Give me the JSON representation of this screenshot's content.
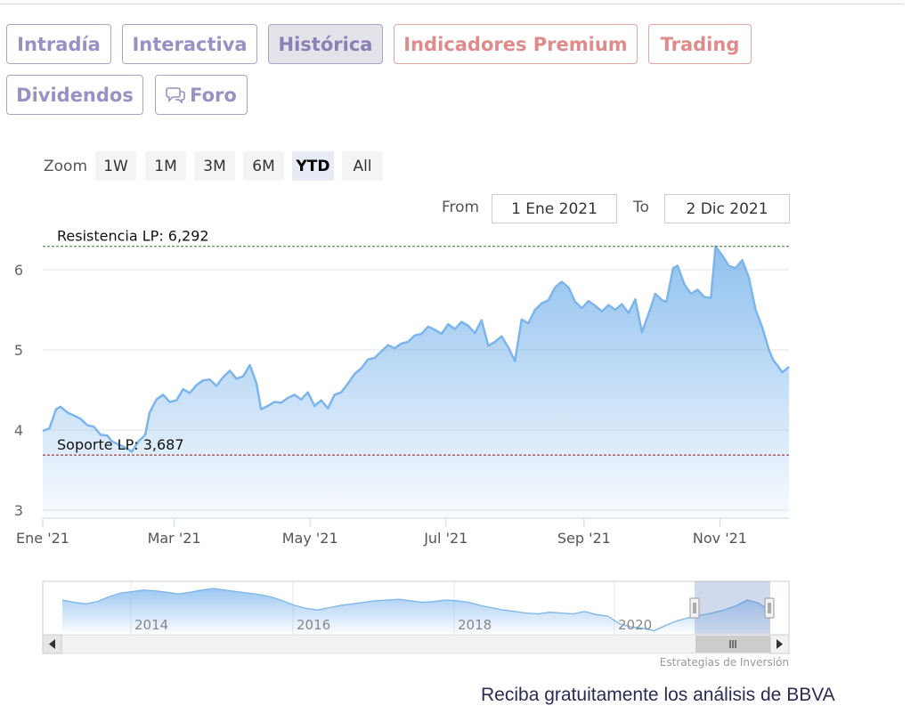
{
  "tabs": [
    {
      "label": "Intradía",
      "style": "normal"
    },
    {
      "label": "Interactiva",
      "style": "normal"
    },
    {
      "label": "Histórica",
      "style": "active"
    },
    {
      "label": "Indicadores Premium",
      "style": "premium"
    },
    {
      "label": "Trading",
      "style": "premium"
    },
    {
      "label": "Dividendos",
      "style": "normal"
    },
    {
      "label": "Foro",
      "style": "normal",
      "icon": "speech-bubbles-icon"
    }
  ],
  "zoom": {
    "label": "Zoom",
    "buttons": [
      "1W",
      "1M",
      "3M",
      "6M",
      "YTD",
      "All"
    ],
    "selected": "YTD"
  },
  "range": {
    "from_label": "From",
    "from_value": "1 Ene 2021",
    "to_label": "To",
    "to_value": "2 Dic 2021"
  },
  "credit": "Estrategias de Inversión",
  "cta": "Reciba gratuitamente los análisis de BBVA",
  "colors": {
    "line": "#7cb5ec",
    "area_top": "#90bfee",
    "resistance": "#2e7d32",
    "support": "#8b1a1a",
    "tab_text": "#9a90c4",
    "premium_text": "#e08b8b"
  },
  "chart_data": {
    "type": "area",
    "x_ticks": [
      "Ene '21",
      "Mar '21",
      "May '21",
      "Jul '21",
      "Sep '21",
      "Nov '21"
    ],
    "y_ticks": [
      3,
      4,
      5,
      6
    ],
    "ylim": [
      2.9,
      6.9
    ],
    "xlim": [
      "2021-01-01",
      "2021-12-02"
    ],
    "grid": true,
    "resistance": {
      "label": "Resistencia LP: 6,292",
      "value": 6.292
    },
    "support": {
      "label": "Soporte LP: 3,687",
      "value": 3.687
    },
    "series": [
      {
        "points": [
          [
            "2021-01-01",
            3.99
          ],
          [
            "2021-01-04",
            4.02
          ],
          [
            "2021-01-07",
            4.26
          ],
          [
            "2021-01-09",
            4.29
          ],
          [
            "2021-01-12",
            4.22
          ],
          [
            "2021-01-15",
            4.18
          ],
          [
            "2021-01-18",
            4.14
          ],
          [
            "2021-01-21",
            4.06
          ],
          [
            "2021-01-24",
            4.04
          ],
          [
            "2021-01-27",
            3.94
          ],
          [
            "2021-01-30",
            3.93
          ],
          [
            "2021-02-01",
            3.86
          ],
          [
            "2021-02-04",
            3.82
          ],
          [
            "2021-02-07",
            3.78
          ],
          [
            "2021-02-10",
            3.73
          ],
          [
            "2021-02-13",
            3.86
          ],
          [
            "2021-02-16",
            3.94
          ],
          [
            "2021-02-18",
            4.22
          ],
          [
            "2021-02-21",
            4.38
          ],
          [
            "2021-02-24",
            4.44
          ],
          [
            "2021-02-27",
            4.35
          ],
          [
            "2021-03-02",
            4.37
          ],
          [
            "2021-03-05",
            4.51
          ],
          [
            "2021-03-08",
            4.46
          ],
          [
            "2021-03-11",
            4.56
          ],
          [
            "2021-03-14",
            4.62
          ],
          [
            "2021-03-17",
            4.63
          ],
          [
            "2021-03-20",
            4.55
          ],
          [
            "2021-03-23",
            4.66
          ],
          [
            "2021-03-26",
            4.74
          ],
          [
            "2021-03-29",
            4.64
          ],
          [
            "2021-04-01",
            4.67
          ],
          [
            "2021-04-04",
            4.81
          ],
          [
            "2021-04-07",
            4.58
          ],
          [
            "2021-04-09",
            4.26
          ],
          [
            "2021-04-12",
            4.3
          ],
          [
            "2021-04-15",
            4.35
          ],
          [
            "2021-04-18",
            4.34
          ],
          [
            "2021-04-21",
            4.4
          ],
          [
            "2021-04-24",
            4.44
          ],
          [
            "2021-04-27",
            4.38
          ],
          [
            "2021-04-30",
            4.47
          ],
          [
            "2021-05-03",
            4.3
          ],
          [
            "2021-05-06",
            4.37
          ],
          [
            "2021-05-09",
            4.27
          ],
          [
            "2021-05-12",
            4.44
          ],
          [
            "2021-05-15",
            4.47
          ],
          [
            "2021-05-18",
            4.58
          ],
          [
            "2021-05-21",
            4.7
          ],
          [
            "2021-05-24",
            4.77
          ],
          [
            "2021-05-27",
            4.88
          ],
          [
            "2021-05-30",
            4.9
          ],
          [
            "2021-06-02",
            4.98
          ],
          [
            "2021-06-05",
            5.06
          ],
          [
            "2021-06-08",
            5.02
          ],
          [
            "2021-06-11",
            5.08
          ],
          [
            "2021-06-14",
            5.1
          ],
          [
            "2021-06-17",
            5.18
          ],
          [
            "2021-06-20",
            5.2
          ],
          [
            "2021-06-23",
            5.29
          ],
          [
            "2021-06-26",
            5.25
          ],
          [
            "2021-06-29",
            5.2
          ],
          [
            "2021-07-02",
            5.32
          ],
          [
            "2021-07-05",
            5.26
          ],
          [
            "2021-07-08",
            5.35
          ],
          [
            "2021-07-11",
            5.3
          ],
          [
            "2021-07-14",
            5.21
          ],
          [
            "2021-07-17",
            5.37
          ],
          [
            "2021-07-20",
            5.05
          ],
          [
            "2021-07-23",
            5.1
          ],
          [
            "2021-07-26",
            5.17
          ],
          [
            "2021-07-29",
            5.03
          ],
          [
            "2021-08-01",
            4.86
          ],
          [
            "2021-08-04",
            5.38
          ],
          [
            "2021-08-07",
            5.33
          ],
          [
            "2021-08-10",
            5.5
          ],
          [
            "2021-08-13",
            5.58
          ],
          [
            "2021-08-16",
            5.62
          ],
          [
            "2021-08-19",
            5.78
          ],
          [
            "2021-08-22",
            5.85
          ],
          [
            "2021-08-25",
            5.78
          ],
          [
            "2021-08-28",
            5.6
          ],
          [
            "2021-08-31",
            5.52
          ],
          [
            "2021-09-03",
            5.61
          ],
          [
            "2021-09-06",
            5.55
          ],
          [
            "2021-09-09",
            5.48
          ],
          [
            "2021-09-12",
            5.56
          ],
          [
            "2021-09-15",
            5.5
          ],
          [
            "2021-09-18",
            5.57
          ],
          [
            "2021-09-21",
            5.46
          ],
          [
            "2021-09-24",
            5.63
          ],
          [
            "2021-09-27",
            5.22
          ],
          [
            "2021-09-30",
            5.45
          ],
          [
            "2021-10-03",
            5.7
          ],
          [
            "2021-10-06",
            5.62
          ],
          [
            "2021-10-08",
            5.6
          ],
          [
            "2021-10-11",
            6.02
          ],
          [
            "2021-10-13",
            6.05
          ],
          [
            "2021-10-16",
            5.82
          ],
          [
            "2021-10-19",
            5.7
          ],
          [
            "2021-10-22",
            5.75
          ],
          [
            "2021-10-25",
            5.66
          ],
          [
            "2021-10-28",
            5.65
          ],
          [
            "2021-10-30",
            6.29
          ],
          [
            "2021-11-02",
            6.18
          ],
          [
            "2021-11-05",
            6.05
          ],
          [
            "2021-11-08",
            6.02
          ],
          [
            "2021-11-11",
            6.12
          ],
          [
            "2021-11-14",
            5.9
          ],
          [
            "2021-11-17",
            5.5
          ],
          [
            "2021-11-20",
            5.28
          ],
          [
            "2021-11-23",
            5.0
          ],
          [
            "2021-11-25",
            4.87
          ],
          [
            "2021-11-27",
            4.8
          ],
          [
            "2021-11-29",
            4.72
          ],
          [
            "2021-12-02",
            4.79
          ]
        ]
      }
    ],
    "navigator": {
      "x_ticks": [
        "2014",
        "2016",
        "2018",
        "2020"
      ],
      "values": [
        6.3,
        6.0,
        5.8,
        6.1,
        6.7,
        7.2,
        7.4,
        7.6,
        7.5,
        7.3,
        7.1,
        7.3,
        7.6,
        7.8,
        7.6,
        7.4,
        7.2,
        7.0,
        6.7,
        6.2,
        5.6,
        5.2,
        5.0,
        5.3,
        5.6,
        5.8,
        6.0,
        6.2,
        6.3,
        6.4,
        6.2,
        6.0,
        6.1,
        6.3,
        6.2,
        6.0,
        5.6,
        5.3,
        5.0,
        4.8,
        4.6,
        4.5,
        4.7,
        4.6,
        4.5,
        4.8,
        4.4,
        4.2,
        3.2,
        2.8,
        2.6,
        2.3,
        3.0,
        3.6,
        4.0,
        4.3,
        4.6,
        5.0,
        5.5,
        6.3,
        5.9,
        4.8
      ]
    }
  }
}
